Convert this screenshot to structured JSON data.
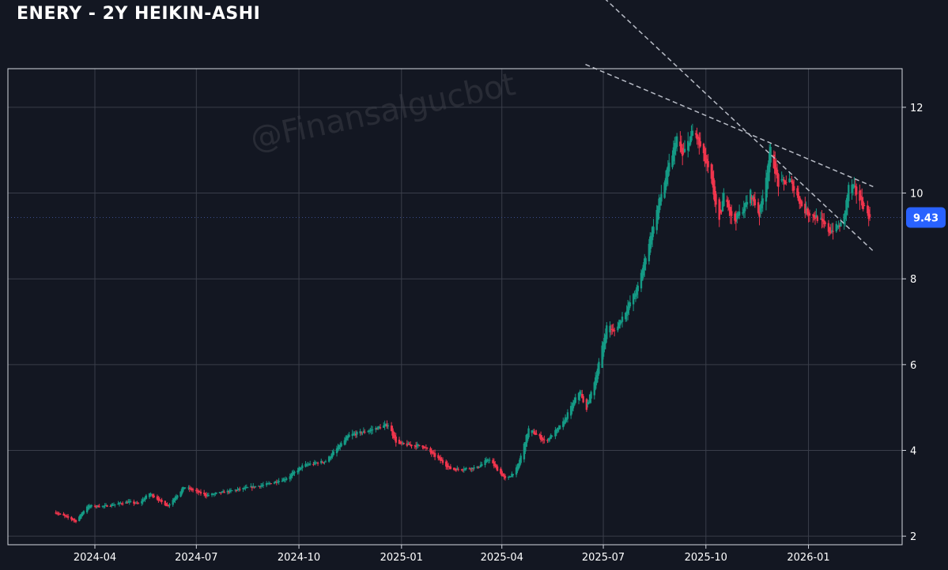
{
  "page": {
    "title": "ENERY - 2Y HEIKIN-ASHI"
  },
  "watermark": "@Finansalgucbot",
  "colors": {
    "background": "#131722",
    "up": "#159a85",
    "down": "#f0354d",
    "grid": "#3a3e4a",
    "trendline": "#b8bcc6",
    "price_tag": "#2962ff"
  },
  "chart_data": {
    "type": "candlestick",
    "style": "heikin-ashi",
    "title": "ENERY - 2Y HEIKIN-ASHI",
    "xlabel": "",
    "ylabel": "",
    "x_ticks": [
      "2024-04",
      "2024-07",
      "2024-10",
      "2025-01",
      "2025-04",
      "2025-07",
      "2025-10",
      "2026-01"
    ],
    "y_ticks": [
      2,
      4,
      6,
      8,
      10,
      12
    ],
    "xlim": [
      "2024-01-14",
      "2026-03-26"
    ],
    "ylim": [
      1.8,
      12.9
    ],
    "y_axis_side": "right",
    "grid": true,
    "last_price": 9.43,
    "last_price_label": "9.43",
    "price_path": [
      [
        "2024-02-26",
        2.55
      ],
      [
        "2024-03-15",
        2.35
      ],
      [
        "2024-03-25",
        2.7
      ],
      [
        "2024-04-10",
        2.7
      ],
      [
        "2024-05-01",
        2.8
      ],
      [
        "2024-05-10",
        2.75
      ],
      [
        "2024-05-20",
        3.0
      ],
      [
        "2024-06-05",
        2.7
      ],
      [
        "2024-06-20",
        3.15
      ],
      [
        "2024-07-10",
        2.95
      ],
      [
        "2024-08-10",
        3.1
      ],
      [
        "2024-09-01",
        3.2
      ],
      [
        "2024-09-20",
        3.35
      ],
      [
        "2024-10-05",
        3.65
      ],
      [
        "2024-10-25",
        3.75
      ],
      [
        "2024-11-15",
        4.35
      ],
      [
        "2024-12-01",
        4.45
      ],
      [
        "2024-12-20",
        4.6
      ],
      [
        "2024-12-28",
        4.15
      ],
      [
        "2025-01-20",
        4.1
      ],
      [
        "2025-02-15",
        3.55
      ],
      [
        "2025-03-10",
        3.6
      ],
      [
        "2025-03-20",
        3.8
      ],
      [
        "2025-04-05",
        3.3
      ],
      [
        "2025-04-15",
        3.6
      ],
      [
        "2025-04-25",
        4.5
      ],
      [
        "2025-05-10",
        4.2
      ],
      [
        "2025-05-25",
        4.6
      ],
      [
        "2025-06-10",
        5.4
      ],
      [
        "2025-06-15",
        4.9
      ],
      [
        "2025-06-25",
        5.8
      ],
      [
        "2025-07-05",
        7.0
      ],
      [
        "2025-07-10",
        6.75
      ],
      [
        "2025-07-20",
        7.2
      ],
      [
        "2025-08-01",
        7.8
      ],
      [
        "2025-08-20",
        9.8
      ],
      [
        "2025-09-05",
        11.3
      ],
      [
        "2025-09-10",
        10.85
      ],
      [
        "2025-09-20",
        11.5
      ],
      [
        "2025-10-05",
        10.4
      ],
      [
        "2025-10-13",
        9.3
      ],
      [
        "2025-10-18",
        10.1
      ],
      [
        "2025-10-25",
        9.3
      ],
      [
        "2025-11-05",
        9.7
      ],
      [
        "2025-11-10",
        10.0
      ],
      [
        "2025-11-18",
        9.5
      ],
      [
        "2025-11-28",
        11.0
      ],
      [
        "2025-12-05",
        10.2
      ],
      [
        "2025-12-15",
        10.3
      ],
      [
        "2025-12-28",
        9.6
      ],
      [
        "2026-01-10",
        9.4
      ],
      [
        "2026-01-20",
        9.1
      ],
      [
        "2026-02-01",
        9.3
      ],
      [
        "2026-02-07",
        10.3
      ],
      [
        "2026-02-15",
        9.9
      ],
      [
        "2026-02-25",
        9.43
      ]
    ],
    "trendlines": [
      {
        "from": [
          "2025-06-15",
          13.0
        ],
        "to": [
          "2026-02-28",
          10.15
        ]
      },
      {
        "from": [
          "2025-06-01",
          15.3
        ],
        "to": [
          "2026-02-28",
          8.65
        ]
      }
    ]
  }
}
